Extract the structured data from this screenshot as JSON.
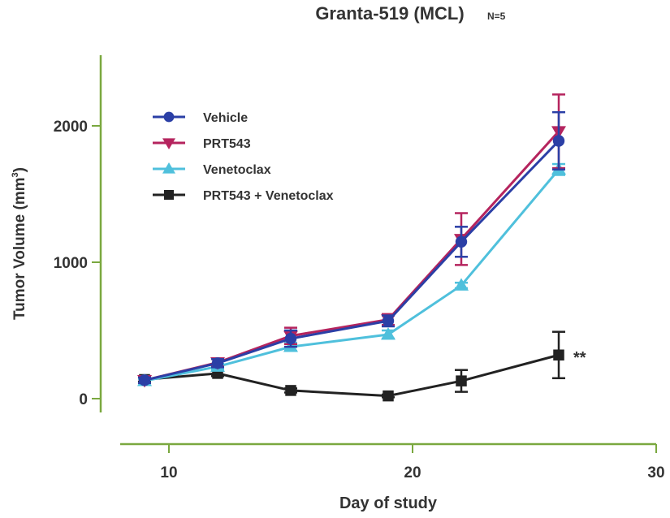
{
  "chart_data": {
    "type": "line",
    "title": "Granta-519 (MCL)",
    "subtitle": "N=5",
    "xlabel": "Day of study",
    "ylabel": "Tumor Volume (mm",
    "ylabel_superscript": "3",
    "ylabel_close": ")",
    "xlim": [
      8,
      30
    ],
    "ylim": [
      -100,
      2500
    ],
    "xticks": [
      10,
      20,
      30
    ],
    "xtick_labels": [
      "10",
      "20",
      "30"
    ],
    "yticks": [
      0,
      1000,
      2000
    ],
    "ytick_labels": [
      "0",
      "1000",
      "2000"
    ],
    "grid": false,
    "legend_position": "top-left",
    "axis_color": "#7aa83f",
    "x": [
      9,
      12,
      15,
      19,
      22,
      26
    ],
    "series": [
      {
        "name": "Vehicle",
        "color": "#2b3fa6",
        "marker": "circle",
        "values": [
          135,
          260,
          440,
          570,
          1150,
          1890
        ],
        "errors": [
          20,
          30,
          60,
          40,
          110,
          210
        ]
      },
      {
        "name": "PRT543",
        "color": "#b5245e",
        "marker": "triangle-down",
        "values": [
          135,
          265,
          460,
          580,
          1170,
          1960
        ],
        "errors": [
          20,
          30,
          60,
          40,
          190,
          270
        ]
      },
      {
        "name": "Venetoclax",
        "color": "#4fc0dc",
        "marker": "triangle-up",
        "values": [
          130,
          235,
          380,
          470,
          830,
          1680
        ],
        "errors": [
          15,
          20,
          30,
          30,
          20,
          40
        ]
      },
      {
        "name": "PRT543 + Venetoclax",
        "color": "#222222",
        "marker": "square",
        "values": [
          140,
          185,
          60,
          20,
          130,
          320
        ],
        "errors": [
          15,
          20,
          15,
          10,
          80,
          170
        ]
      }
    ],
    "annotations": [
      {
        "text": "**",
        "x": 26,
        "y": 320,
        "series": "PRT543 + Venetoclax"
      }
    ]
  }
}
